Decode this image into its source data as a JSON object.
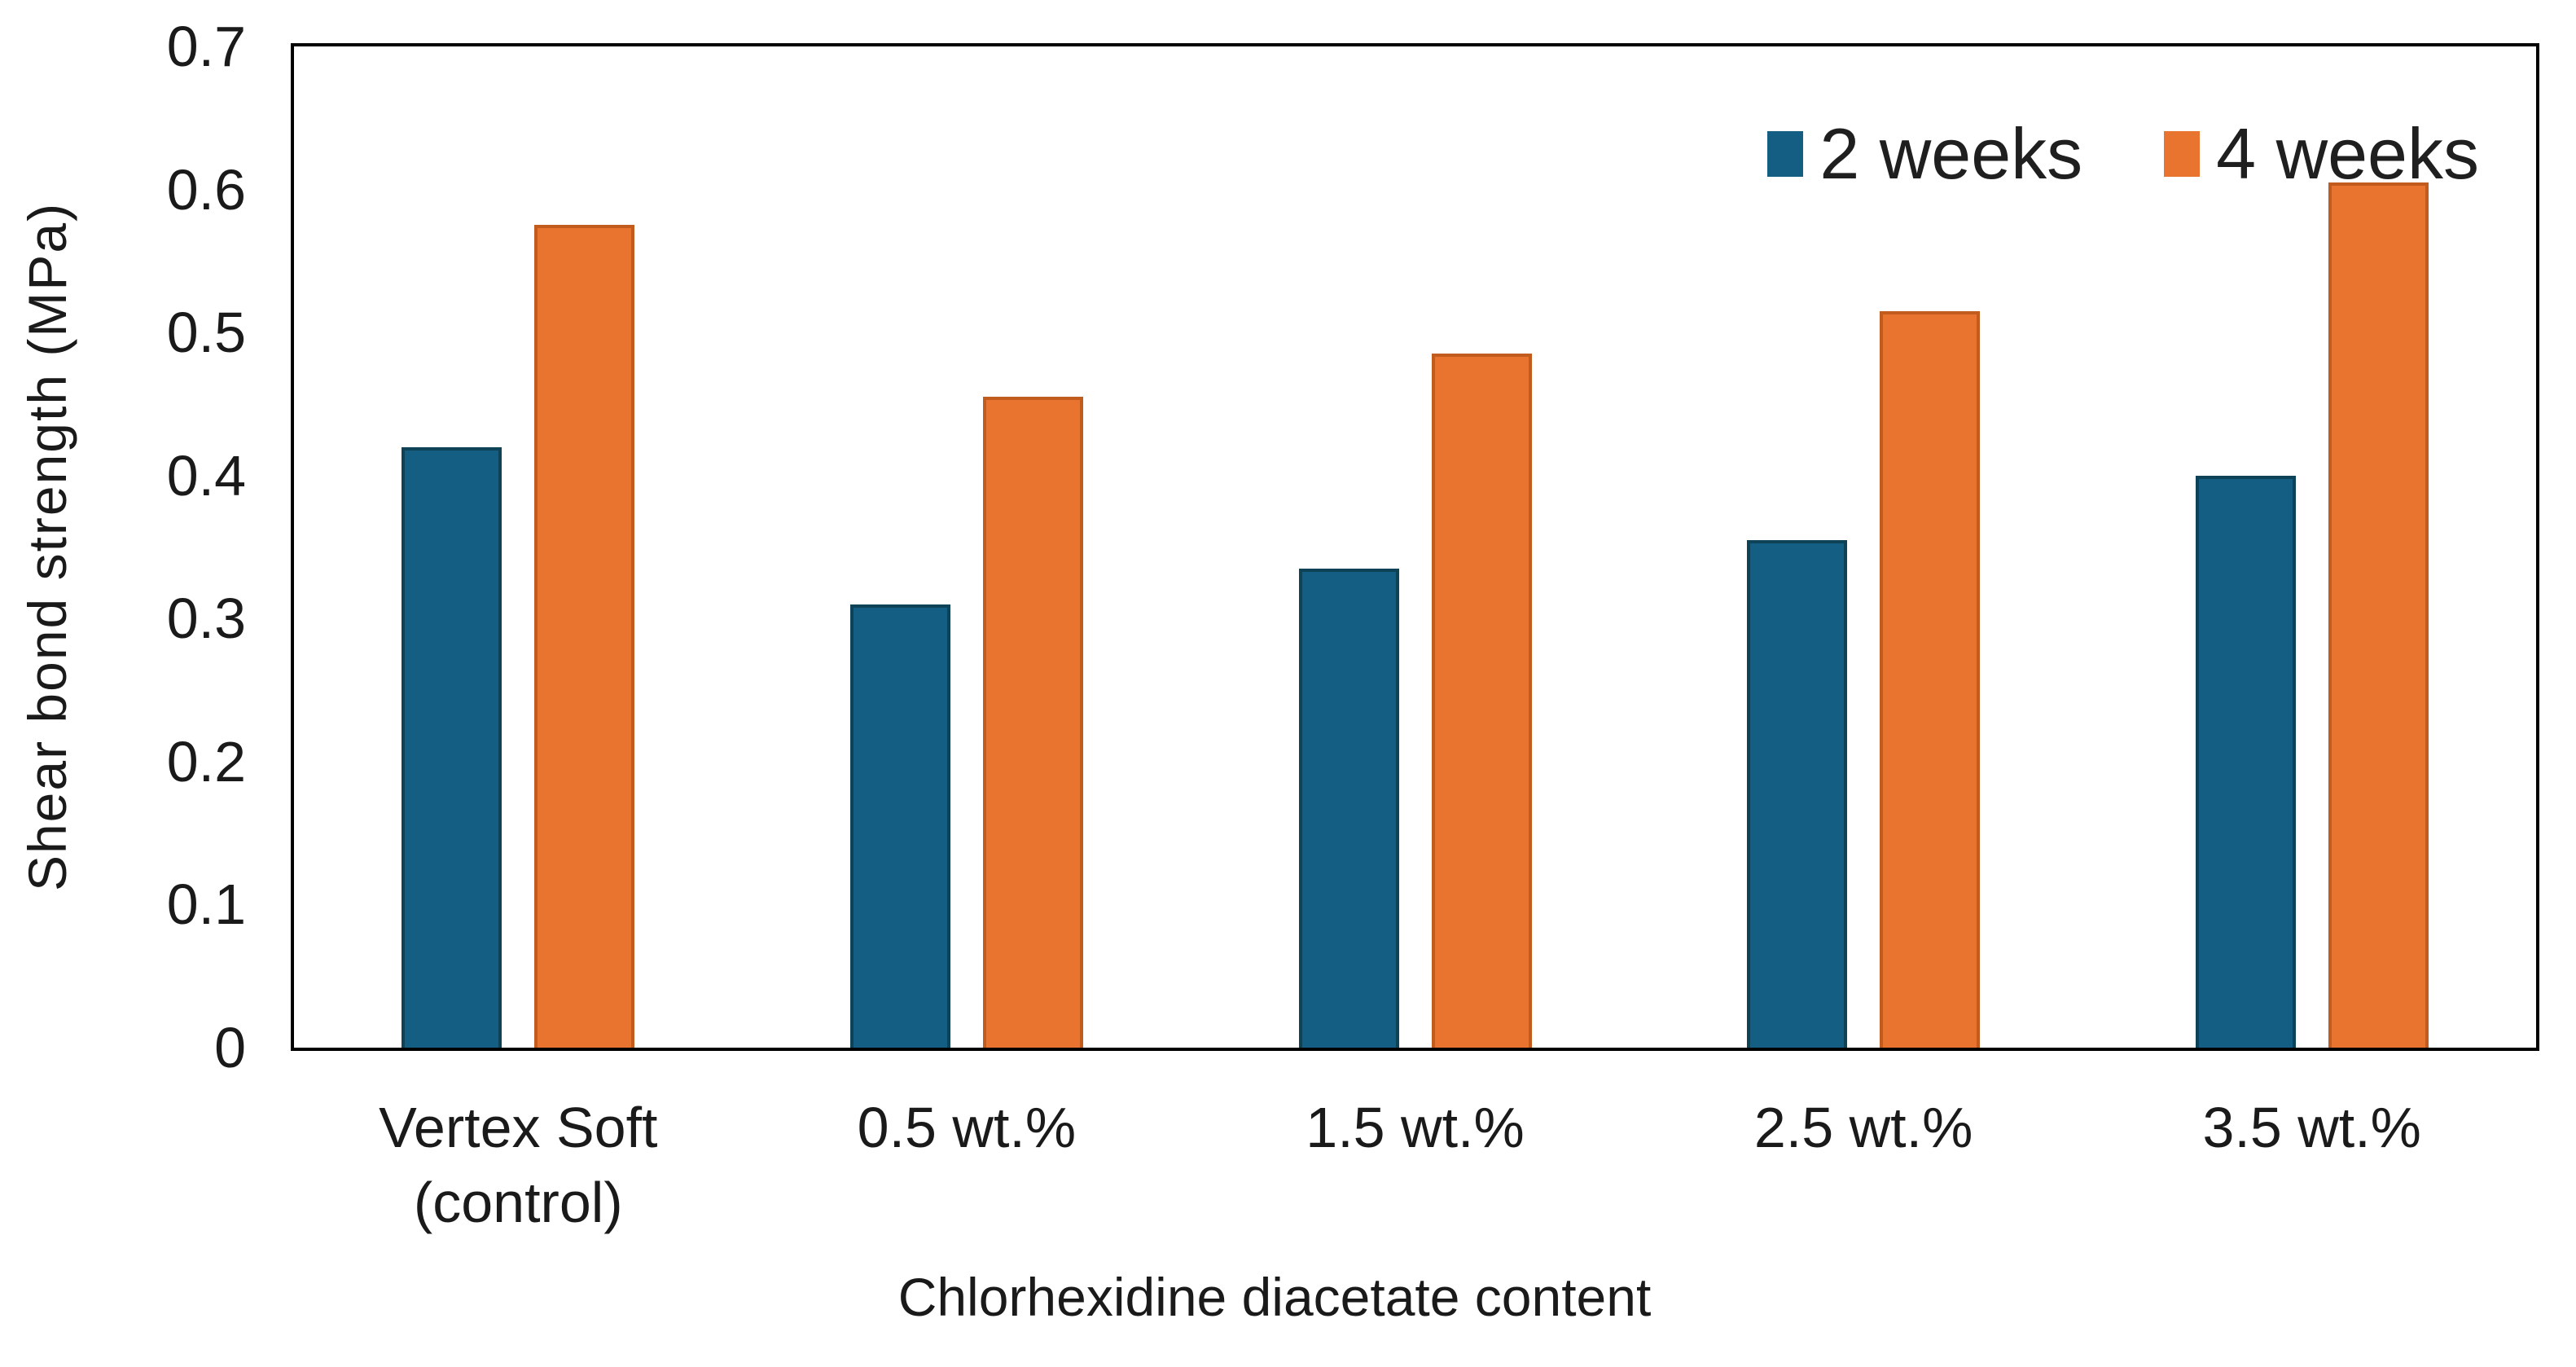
{
  "chart_data": {
    "type": "bar",
    "title": "",
    "xlabel": "Chlorhexidine diacetate content",
    "ylabel": "Shear bond strength (MPa)",
    "ylim": [
      0,
      0.7
    ],
    "yticks": [
      0,
      0.1,
      0.2,
      0.3,
      0.4,
      0.5,
      0.6,
      0.7
    ],
    "ytick_labels": [
      "0",
      "0.1",
      "0.2",
      "0.3",
      "0.4",
      "0.5",
      "0.6",
      "0.7"
    ],
    "grid": false,
    "legend_position": "top-right",
    "categories": [
      "Vertex Soft\n(control)",
      "0.5 wt.%",
      "1.5 wt.%",
      "2.5 wt.%",
      "3.5 wt.%"
    ],
    "series": [
      {
        "name": "2 weeks",
        "color": "#155E83",
        "edge_color": "#0E4257",
        "values": [
          0.42,
          0.31,
          0.335,
          0.355,
          0.4
        ]
      },
      {
        "name": "4 weeks",
        "color": "#E8742F",
        "edge_color": "#C25B1E",
        "values": [
          0.575,
          0.455,
          0.485,
          0.515,
          0.605
        ]
      }
    ]
  },
  "colors": {
    "axis_border": "#000000",
    "text": "#1a1a1a",
    "background": "#ffffff"
  }
}
